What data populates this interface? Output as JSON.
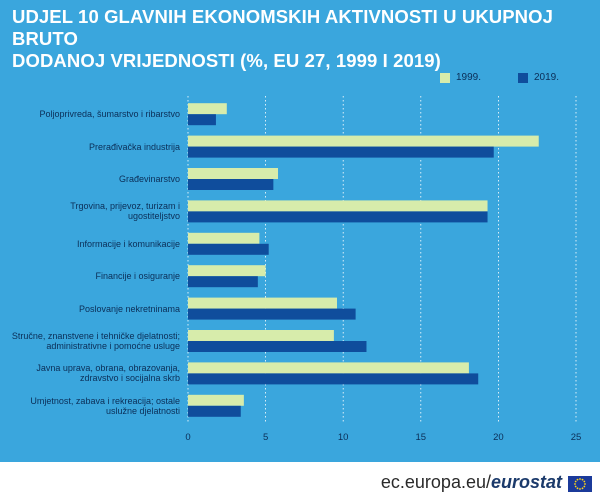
{
  "title_line1": "UDJEL 10 GLAVNIH EKONOMSKIH AKTIVNOSTI U UKUPNOJ BRUTO",
  "title_line2": "DODANOJ VRIJEDNOSTI (%, EU 27, 1999 I 2019)",
  "footer": {
    "domain_text": "ec.europa.eu/",
    "brand_text": "eurostat"
  },
  "colors": {
    "background": "#3aa6dd",
    "series_1999": "#d7ecab",
    "series_2019": "#0f4d9c",
    "text": "#0b2e57",
    "grid": "#ffffff"
  },
  "chart_data": {
    "type": "bar",
    "orientation": "horizontal",
    "categories": [
      [
        "Poljoprivreda, šumarstvo i ribarstvo"
      ],
      [
        "Prerađivačka industrija"
      ],
      [
        "Građevinarstvo"
      ],
      [
        "Trgovina, prijevoz, turizam i",
        "ugostiteljstvo"
      ],
      [
        "Informacije i komunikacije"
      ],
      [
        "Financije i osiguranje"
      ],
      [
        "Poslovanje nekretninama"
      ],
      [
        "Stručne, znanstvene i tehničke djelatnosti;",
        "administrativne i pomoćne usluge"
      ],
      [
        "Javna uprava, obrana, obrazovanja,",
        "zdravstvo i socijalna skrb"
      ],
      [
        "Umjetnost, zabava i rekreacija; ostale",
        "uslužne djelatnosti"
      ]
    ],
    "series": [
      {
        "name": "1999.",
        "values": [
          2.5,
          22.6,
          5.8,
          19.3,
          4.6,
          5.0,
          9.6,
          9.4,
          18.1,
          3.6
        ]
      },
      {
        "name": "2019.",
        "values": [
          1.8,
          19.7,
          5.5,
          19.3,
          5.2,
          4.5,
          10.8,
          11.5,
          18.7,
          3.4
        ]
      }
    ],
    "xlim": [
      0,
      25
    ],
    "xticks": [
      0,
      5,
      10,
      15,
      20,
      25
    ],
    "grid": true,
    "legend": "top-right"
  }
}
